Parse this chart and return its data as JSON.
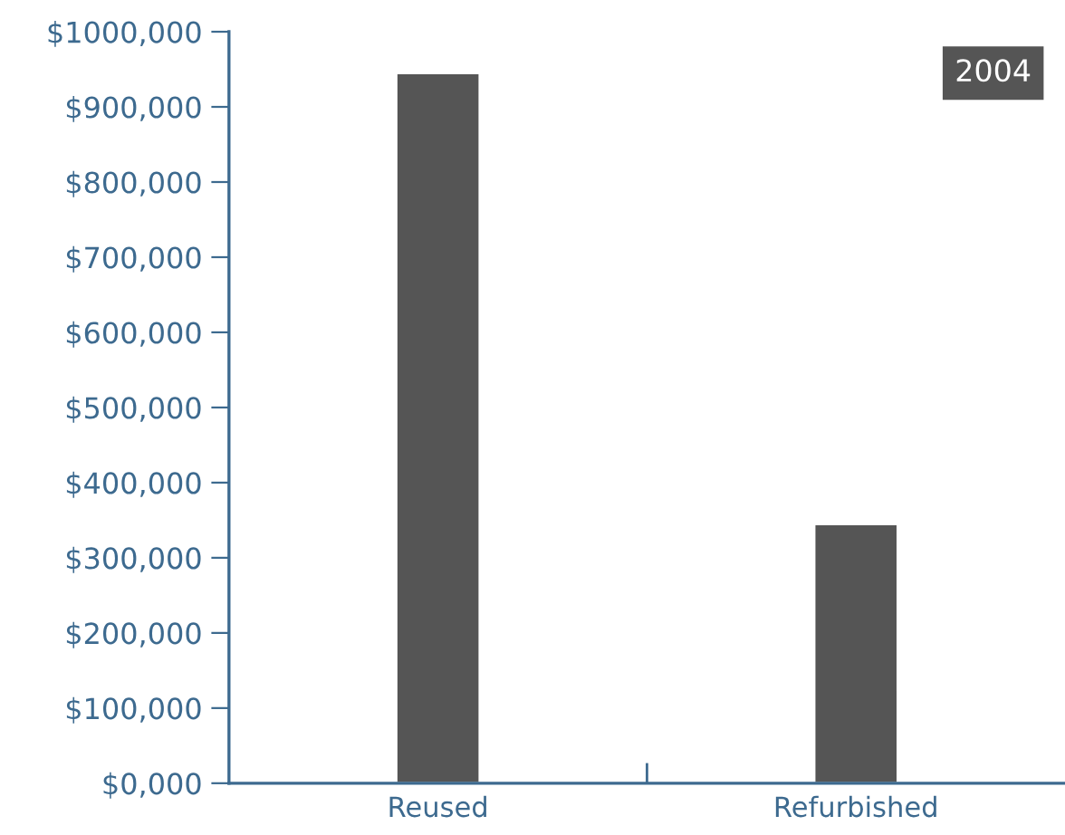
{
  "chart_data": {
    "type": "bar",
    "title": "2004",
    "categories": [
      "Reused",
      "Refurbished"
    ],
    "values": [
      945000,
      345000
    ],
    "color": "#555555",
    "ylim": [
      0,
      1000000
    ],
    "yticks": [
      {
        "value": 0,
        "label": "$0,000"
      },
      {
        "value": 100000,
        "label": "$100,000"
      },
      {
        "value": 200000,
        "label": "$200,000"
      },
      {
        "value": 300000,
        "label": "$300,000"
      },
      {
        "value": 400000,
        "label": "$400,000"
      },
      {
        "value": 500000,
        "label": "$500,000"
      },
      {
        "value": 600000,
        "label": "$600,000"
      },
      {
        "value": 700000,
        "label": "$700,000"
      },
      {
        "value": 800000,
        "label": "$800,000"
      },
      {
        "value": 900000,
        "label": "$900,000"
      },
      {
        "value": 1000000,
        "label": "$1000,000"
      }
    ],
    "grid": false
  }
}
